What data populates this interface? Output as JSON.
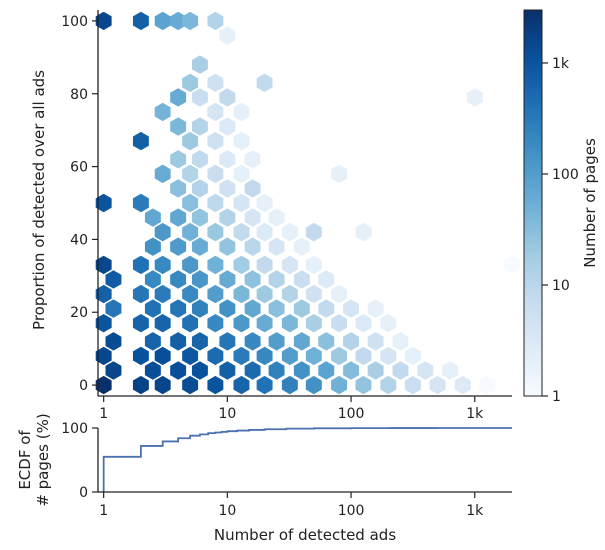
{
  "chart_data": [
    {
      "type": "heatmap",
      "subtype": "hexbin",
      "title": "",
      "xlabel": "",
      "ylabel": "Proportion of detected over all ads",
      "x_scale": "log",
      "xlim": [
        0.9,
        2000
      ],
      "ylim": [
        -3,
        103
      ],
      "x_ticks": [
        {
          "value": 1,
          "label": "1"
        },
        {
          "value": 10,
          "label": "10"
        },
        {
          "value": 100,
          "label": "100"
        },
        {
          "value": 1000,
          "label": "1k"
        }
      ],
      "y_ticks": [
        {
          "value": 0,
          "label": "0"
        },
        {
          "value": 20,
          "label": "20"
        },
        {
          "value": 40,
          "label": "40"
        },
        {
          "value": 60,
          "label": "60"
        },
        {
          "value": 80,
          "label": "80"
        },
        {
          "value": 100,
          "label": "100"
        }
      ],
      "colorbar": {
        "label": "Number of pages",
        "scale": "log",
        "range": [
          1,
          3000
        ],
        "ticks": [
          {
            "value": 1,
            "label": "1"
          },
          {
            "value": 10,
            "label": "10"
          },
          {
            "value": 100,
            "label": "100"
          },
          {
            "value": 1000,
            "label": "1k"
          }
        ],
        "colormap": "Blues"
      },
      "bins": [
        {
          "x": 1,
          "y": 0,
          "count": 3000
        },
        {
          "x": 1,
          "y": 8,
          "count": 1500
        },
        {
          "x": 1,
          "y": 17,
          "count": 1000
        },
        {
          "x": 1,
          "y": 25,
          "count": 700
        },
        {
          "x": 1,
          "y": 33,
          "count": 1500
        },
        {
          "x": 1,
          "y": 50,
          "count": 1000
        },
        {
          "x": 1,
          "y": 100,
          "count": 1500
        },
        {
          "x": 1.2,
          "y": 4,
          "count": 1600
        },
        {
          "x": 1.2,
          "y": 12,
          "count": 1300
        },
        {
          "x": 1.2,
          "y": 21,
          "count": 350
        },
        {
          "x": 1.2,
          "y": 29,
          "count": 800
        },
        {
          "x": 2,
          "y": 0,
          "count": 1700
        },
        {
          "x": 2,
          "y": 8,
          "count": 1100
        },
        {
          "x": 2,
          "y": 17,
          "count": 600
        },
        {
          "x": 2,
          "y": 25,
          "count": 350
        },
        {
          "x": 2,
          "y": 33,
          "count": 400
        },
        {
          "x": 2,
          "y": 50,
          "count": 300
        },
        {
          "x": 2,
          "y": 67,
          "count": 700
        },
        {
          "x": 2,
          "y": 100,
          "count": 700
        },
        {
          "x": 2.5,
          "y": 4,
          "count": 1200
        },
        {
          "x": 2.5,
          "y": 12,
          "count": 600
        },
        {
          "x": 2.5,
          "y": 21,
          "count": 400
        },
        {
          "x": 2.5,
          "y": 29,
          "count": 200
        },
        {
          "x": 2.5,
          "y": 38,
          "count": 150
        },
        {
          "x": 2.5,
          "y": 46,
          "count": 70
        },
        {
          "x": 3,
          "y": 0,
          "count": 1600
        },
        {
          "x": 3,
          "y": 8,
          "count": 1200
        },
        {
          "x": 3,
          "y": 17,
          "count": 600
        },
        {
          "x": 3,
          "y": 25,
          "count": 300
        },
        {
          "x": 3,
          "y": 33,
          "count": 200
        },
        {
          "x": 3,
          "y": 42,
          "count": 120
        },
        {
          "x": 3,
          "y": 58,
          "count": 60
        },
        {
          "x": 3,
          "y": 75,
          "count": 45
        },
        {
          "x": 3,
          "y": 100,
          "count": 80
        },
        {
          "x": 4,
          "y": 4,
          "count": 1200
        },
        {
          "x": 4,
          "y": 12,
          "count": 700
        },
        {
          "x": 4,
          "y": 21,
          "count": 350
        },
        {
          "x": 4,
          "y": 29,
          "count": 200
        },
        {
          "x": 4,
          "y": 38,
          "count": 110
        },
        {
          "x": 4,
          "y": 46,
          "count": 70
        },
        {
          "x": 4,
          "y": 54,
          "count": 30
        },
        {
          "x": 4,
          "y": 62,
          "count": 20
        },
        {
          "x": 4,
          "y": 71,
          "count": 40
        },
        {
          "x": 4,
          "y": 79,
          "count": 60
        },
        {
          "x": 4,
          "y": 100,
          "count": 60
        },
        {
          "x": 5,
          "y": 0,
          "count": 1300
        },
        {
          "x": 5,
          "y": 8,
          "count": 900
        },
        {
          "x": 5,
          "y": 17,
          "count": 400
        },
        {
          "x": 5,
          "y": 25,
          "count": 200
        },
        {
          "x": 5,
          "y": 33,
          "count": 120
        },
        {
          "x": 5,
          "y": 42,
          "count": 50
        },
        {
          "x": 5,
          "y": 50,
          "count": 30
        },
        {
          "x": 5,
          "y": 58,
          "count": 12
        },
        {
          "x": 5,
          "y": 67,
          "count": 20
        },
        {
          "x": 5,
          "y": 83,
          "count": 20
        },
        {
          "x": 5,
          "y": 100,
          "count": 40
        },
        {
          "x": 6,
          "y": 4,
          "count": 1100
        },
        {
          "x": 6,
          "y": 12,
          "count": 600
        },
        {
          "x": 6,
          "y": 21,
          "count": 250
        },
        {
          "x": 6,
          "y": 29,
          "count": 130
        },
        {
          "x": 6,
          "y": 38,
          "count": 60
        },
        {
          "x": 6,
          "y": 46,
          "count": 25
        },
        {
          "x": 6,
          "y": 54,
          "count": 12
        },
        {
          "x": 6,
          "y": 62,
          "count": 8
        },
        {
          "x": 6,
          "y": 71,
          "count": 12
        },
        {
          "x": 6,
          "y": 79,
          "count": 6
        },
        {
          "x": 6,
          "y": 88,
          "count": 15
        },
        {
          "x": 8,
          "y": 0,
          "count": 1000
        },
        {
          "x": 8,
          "y": 8,
          "count": 500
        },
        {
          "x": 8,
          "y": 17,
          "count": 200
        },
        {
          "x": 8,
          "y": 25,
          "count": 100
        },
        {
          "x": 8,
          "y": 33,
          "count": 50
        },
        {
          "x": 8,
          "y": 42,
          "count": 22
        },
        {
          "x": 8,
          "y": 50,
          "count": 9
        },
        {
          "x": 8,
          "y": 58,
          "count": 6
        },
        {
          "x": 8,
          "y": 67,
          "count": 5
        },
        {
          "x": 8,
          "y": 75,
          "count": 4
        },
        {
          "x": 8,
          "y": 83,
          "count": 5
        },
        {
          "x": 8,
          "y": 100,
          "count": 12
        },
        {
          "x": 10,
          "y": 4,
          "count": 700
        },
        {
          "x": 10,
          "y": 12,
          "count": 350
        },
        {
          "x": 10,
          "y": 21,
          "count": 150
        },
        {
          "x": 10,
          "y": 29,
          "count": 60
        },
        {
          "x": 10,
          "y": 38,
          "count": 25
        },
        {
          "x": 10,
          "y": 46,
          "count": 12
        },
        {
          "x": 10,
          "y": 54,
          "count": 5
        },
        {
          "x": 10,
          "y": 62,
          "count": 3
        },
        {
          "x": 10,
          "y": 71,
          "count": 3
        },
        {
          "x": 10,
          "y": 79,
          "count": 8
        },
        {
          "x": 10,
          "y": 96,
          "count": 2
        },
        {
          "x": 13,
          "y": 0,
          "count": 600
        },
        {
          "x": 13,
          "y": 8,
          "count": 300
        },
        {
          "x": 13,
          "y": 17,
          "count": 120
        },
        {
          "x": 13,
          "y": 25,
          "count": 40
        },
        {
          "x": 13,
          "y": 33,
          "count": 18
        },
        {
          "x": 13,
          "y": 42,
          "count": 8
        },
        {
          "x": 13,
          "y": 50,
          "count": 4
        },
        {
          "x": 13,
          "y": 58,
          "count": 2
        },
        {
          "x": 13,
          "y": 67,
          "count": 2
        },
        {
          "x": 13,
          "y": 75,
          "count": 2
        },
        {
          "x": 16,
          "y": 4,
          "count": 500
        },
        {
          "x": 16,
          "y": 12,
          "count": 200
        },
        {
          "x": 16,
          "y": 21,
          "count": 70
        },
        {
          "x": 16,
          "y": 29,
          "count": 28
        },
        {
          "x": 16,
          "y": 38,
          "count": 10
        },
        {
          "x": 16,
          "y": 46,
          "count": 4
        },
        {
          "x": 16,
          "y": 54,
          "count": 8
        },
        {
          "x": 16,
          "y": 62,
          "count": 2
        },
        {
          "x": 20,
          "y": 0,
          "count": 400
        },
        {
          "x": 20,
          "y": 8,
          "count": 200
        },
        {
          "x": 20,
          "y": 17,
          "count": 60
        },
        {
          "x": 20,
          "y": 25,
          "count": 20
        },
        {
          "x": 20,
          "y": 33,
          "count": 8
        },
        {
          "x": 20,
          "y": 42,
          "count": 3
        },
        {
          "x": 20,
          "y": 50,
          "count": 2
        },
        {
          "x": 20,
          "y": 83,
          "count": 8
        },
        {
          "x": 25,
          "y": 4,
          "count": 250
        },
        {
          "x": 25,
          "y": 12,
          "count": 100
        },
        {
          "x": 25,
          "y": 21,
          "count": 30
        },
        {
          "x": 25,
          "y": 29,
          "count": 12
        },
        {
          "x": 25,
          "y": 38,
          "count": 4
        },
        {
          "x": 25,
          "y": 46,
          "count": 2
        },
        {
          "x": 32,
          "y": 0,
          "count": 250
        },
        {
          "x": 32,
          "y": 8,
          "count": 100
        },
        {
          "x": 32,
          "y": 17,
          "count": 40
        },
        {
          "x": 32,
          "y": 25,
          "count": 12
        },
        {
          "x": 32,
          "y": 33,
          "count": 4
        },
        {
          "x": 32,
          "y": 42,
          "count": 2
        },
        {
          "x": 40,
          "y": 4,
          "count": 150
        },
        {
          "x": 40,
          "y": 12,
          "count": 70
        },
        {
          "x": 40,
          "y": 21,
          "count": 20
        },
        {
          "x": 40,
          "y": 29,
          "count": 6
        },
        {
          "x": 40,
          "y": 38,
          "count": 2
        },
        {
          "x": 50,
          "y": 0,
          "count": 150
        },
        {
          "x": 50,
          "y": 8,
          "count": 50
        },
        {
          "x": 50,
          "y": 17,
          "count": 15
        },
        {
          "x": 50,
          "y": 25,
          "count": 5
        },
        {
          "x": 50,
          "y": 33,
          "count": 2
        },
        {
          "x": 50,
          "y": 42,
          "count": 8
        },
        {
          "x": 63,
          "y": 4,
          "count": 80
        },
        {
          "x": 63,
          "y": 12,
          "count": 30
        },
        {
          "x": 63,
          "y": 21,
          "count": 8
        },
        {
          "x": 63,
          "y": 29,
          "count": 3
        },
        {
          "x": 80,
          "y": 0,
          "count": 50
        },
        {
          "x": 80,
          "y": 8,
          "count": 20
        },
        {
          "x": 80,
          "y": 17,
          "count": 6
        },
        {
          "x": 80,
          "y": 25,
          "count": 2
        },
        {
          "x": 80,
          "y": 58,
          "count": 2
        },
        {
          "x": 100,
          "y": 4,
          "count": 35
        },
        {
          "x": 100,
          "y": 12,
          "count": 12
        },
        {
          "x": 100,
          "y": 21,
          "count": 4
        },
        {
          "x": 126,
          "y": 0,
          "count": 25
        },
        {
          "x": 126,
          "y": 8,
          "count": 8
        },
        {
          "x": 126,
          "y": 17,
          "count": 3
        },
        {
          "x": 126,
          "y": 42,
          "count": 2
        },
        {
          "x": 158,
          "y": 4,
          "count": 15
        },
        {
          "x": 158,
          "y": 12,
          "count": 5
        },
        {
          "x": 158,
          "y": 21,
          "count": 2
        },
        {
          "x": 200,
          "y": 0,
          "count": 12
        },
        {
          "x": 200,
          "y": 8,
          "count": 4
        },
        {
          "x": 200,
          "y": 17,
          "count": 2
        },
        {
          "x": 251,
          "y": 4,
          "count": 8
        },
        {
          "x": 251,
          "y": 12,
          "count": 2
        },
        {
          "x": 316,
          "y": 0,
          "count": 6
        },
        {
          "x": 316,
          "y": 8,
          "count": 2
        },
        {
          "x": 398,
          "y": 4,
          "count": 4
        },
        {
          "x": 500,
          "y": 0,
          "count": 4
        },
        {
          "x": 630,
          "y": 4,
          "count": 2
        },
        {
          "x": 800,
          "y": 0,
          "count": 3
        },
        {
          "x": 1000,
          "y": 79,
          "count": 2
        },
        {
          "x": 1260,
          "y": 0,
          "count": 1
        },
        {
          "x": 2000,
          "y": 33,
          "count": 1
        }
      ]
    },
    {
      "type": "line",
      "subtype": "ecdf-step",
      "title": "",
      "xlabel": "Number of detected ads",
      "ylabel": "ECDF of\n# pages (%)",
      "x_scale": "log",
      "xlim": [
        0.9,
        2000
      ],
      "ylim": [
        0,
        100
      ],
      "x_ticks": [
        {
          "value": 1,
          "label": "1"
        },
        {
          "value": 10,
          "label": "10"
        },
        {
          "value": 100,
          "label": "100"
        },
        {
          "value": 1000,
          "label": "1k"
        }
      ],
      "y_ticks": [
        {
          "value": 0,
          "label": "0"
        },
        {
          "value": 100,
          "label": "100"
        }
      ],
      "series": [
        {
          "color": "#4c72b0",
          "x": [
            1,
            2,
            3,
            4,
            5,
            6,
            7,
            8,
            9,
            10,
            12,
            15,
            20,
            30,
            50,
            100,
            200,
            500,
            1000,
            2000
          ],
          "y": [
            55,
            72,
            79,
            84,
            88,
            90,
            92,
            93,
            94,
            95,
            96,
            97,
            98,
            99,
            99.5,
            99.8,
            99.9,
            100,
            100,
            100
          ]
        }
      ]
    }
  ]
}
